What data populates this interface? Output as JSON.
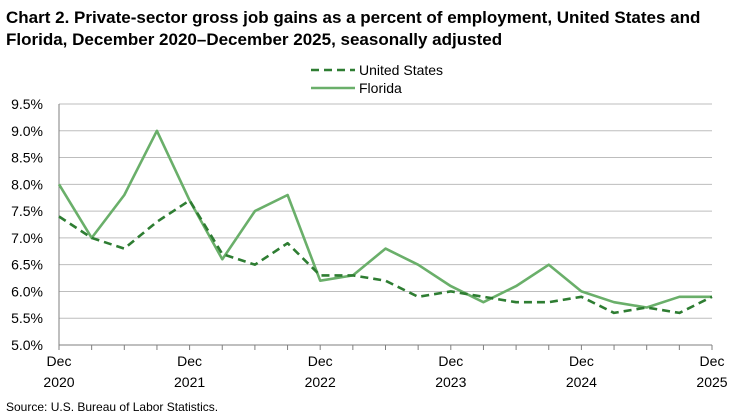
{
  "chart_data": {
    "type": "line",
    "title": "Chart 2. Private-sector gross job gains as a percent of employment, United States and Florida, December 2020–December 2025, seasonally adjusted",
    "source": "Source: U.S. Bureau of Labor Statistics.",
    "x": [
      "Dec 2020",
      "Mar 2021",
      "Jun 2021",
      "Sep 2021",
      "Dec 2021",
      "Mar 2022",
      "Jun 2022",
      "Sep 2022",
      "Dec 2022",
      "Mar 2023",
      "Jun 2023",
      "Sep 2023",
      "Dec 2023",
      "Mar 2024",
      "Jun 2024",
      "Sep 2024",
      "Dec 2024",
      "Mar 2025",
      "Jun 2025",
      "Sep 2025",
      "Dec 2025"
    ],
    "x_tick_labels": [
      {
        "index": 0,
        "line1": "Dec",
        "line2": "2020"
      },
      {
        "index": 4,
        "line1": "Dec",
        "line2": "2021"
      },
      {
        "index": 8,
        "line1": "Dec",
        "line2": "2022"
      },
      {
        "index": 12,
        "line1": "Dec",
        "line2": "2023"
      },
      {
        "index": 16,
        "line1": "Dec",
        "line2": "2024"
      },
      {
        "index": 20,
        "line1": "Dec",
        "line2": "2025"
      }
    ],
    "y_ticks": [
      "5.0%",
      "5.5%",
      "6.0%",
      "6.5%",
      "7.0%",
      "7.5%",
      "8.0%",
      "8.5%",
      "9.0%",
      "9.5%"
    ],
    "ylim": [
      5.0,
      9.5
    ],
    "y_unit": "percent",
    "grid": true,
    "legend_position": "top-center",
    "series": [
      {
        "name": "United States",
        "style": "dashed",
        "color": "#2e7d32",
        "values": [
          7.4,
          7.0,
          6.8,
          7.3,
          7.7,
          6.7,
          6.5,
          6.9,
          6.3,
          6.3,
          6.2,
          5.9,
          6.0,
          5.9,
          5.8,
          5.8,
          5.9,
          5.6,
          5.7,
          5.6,
          5.9
        ]
      },
      {
        "name": "Florida",
        "style": "solid",
        "color": "#6aaf6a",
        "values": [
          8.0,
          7.0,
          7.8,
          9.0,
          7.7,
          6.6,
          7.5,
          7.8,
          6.2,
          6.3,
          6.8,
          6.5,
          6.1,
          5.8,
          6.1,
          6.5,
          6.0,
          5.8,
          5.7,
          5.9,
          5.9
        ]
      }
    ]
  }
}
